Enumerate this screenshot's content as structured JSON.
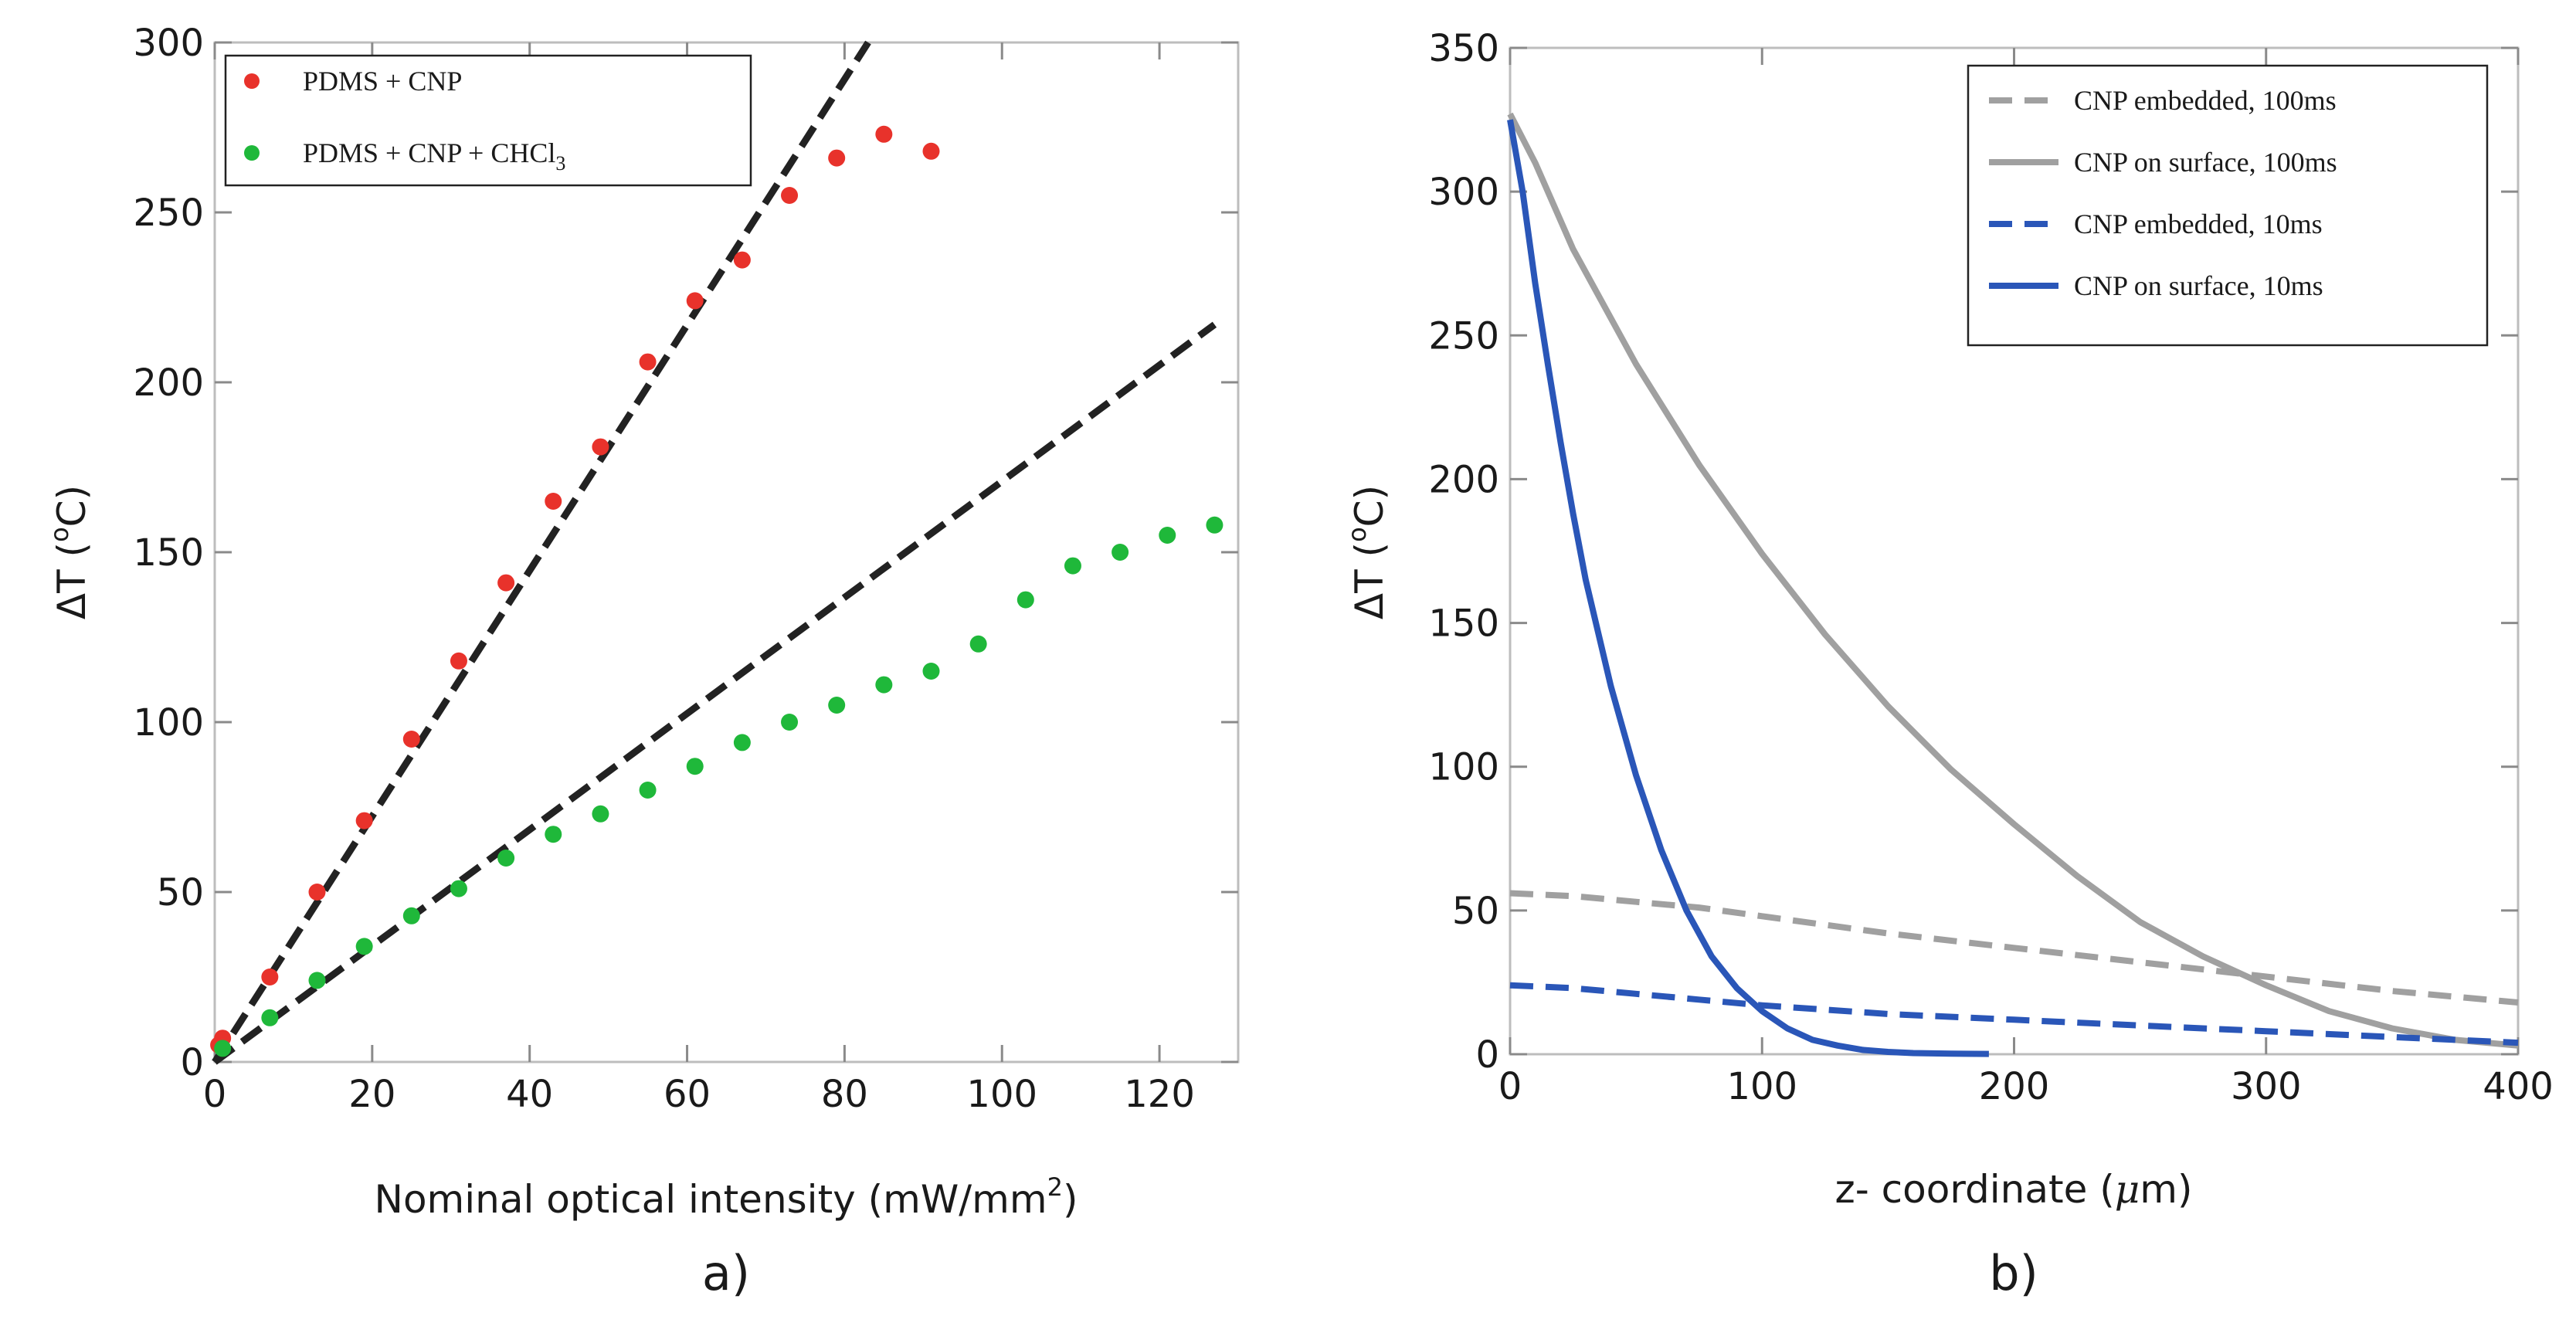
{
  "chart_data": [
    {
      "panel": "a)",
      "type": "scatter",
      "xlabel": "Nominal optical intensity (mW/mm",
      "xlabel_sup": "2",
      "xlabel_end": ")",
      "ylabel": "ΔT (",
      "ylabel_sup": "o",
      "ylabel_end": "C)",
      "xlim": [
        0,
        130
      ],
      "ylim": [
        0,
        300
      ],
      "xticks": [
        0,
        20,
        40,
        60,
        80,
        100,
        120
      ],
      "yticks": [
        0,
        50,
        100,
        150,
        200,
        250,
        300
      ],
      "legend_position": "top-left",
      "series": [
        {
          "name": "PDMS + CNP",
          "color": "#e8322b",
          "marker": "circle",
          "x": [
            0.5,
            1,
            7,
            13,
            19,
            25,
            31,
            37,
            43,
            49,
            55,
            61,
            67,
            73,
            79,
            85,
            91
          ],
          "y": [
            5,
            7,
            25,
            50,
            71,
            95,
            118,
            141,
            165,
            181,
            206,
            224,
            236,
            255,
            266,
            273,
            268
          ]
        },
        {
          "name": "PDMS + CNP + CHCl",
          "name_sub": "3",
          "color": "#1fb83a",
          "marker": "circle",
          "x": [
            1,
            7,
            13,
            19,
            25,
            31,
            37,
            43,
            49,
            55,
            61,
            67,
            73,
            79,
            85,
            91,
            97,
            103,
            109,
            115,
            121,
            127
          ],
          "y": [
            4,
            13,
            24,
            34,
            43,
            51,
            60,
            67,
            73,
            80,
            87,
            94,
            100,
            105,
            111,
            115,
            123,
            136,
            146,
            150,
            155,
            158
          ]
        }
      ],
      "fits": [
        {
          "style": "dashed",
          "color": "#222222",
          "x": [
            0,
            83
          ],
          "y": [
            0,
            300
          ]
        },
        {
          "style": "dashed",
          "color": "#222222",
          "x": [
            0,
            127
          ],
          "y": [
            0,
            217
          ]
        }
      ]
    },
    {
      "panel": "b)",
      "type": "line",
      "xlabel": "z- coordinate (",
      "xlabel_mu": "μ",
      "xlabel_end": "m)",
      "ylabel": "ΔT (",
      "ylabel_sup": "o",
      "ylabel_end": "C)",
      "xlim": [
        0,
        400
      ],
      "ylim": [
        0,
        350
      ],
      "xticks": [
        0,
        100,
        200,
        300,
        400
      ],
      "yticks": [
        0,
        50,
        100,
        150,
        200,
        250,
        300,
        350
      ],
      "legend_position": "top-right",
      "series": [
        {
          "name": "CNP embedded, 100ms",
          "color": "#a0a0a0",
          "style": "dashed",
          "x": [
            0,
            25,
            50,
            75,
            100,
            150,
            200,
            250,
            300,
            350,
            400
          ],
          "y": [
            56,
            55,
            53,
            51,
            48,
            42,
            37,
            32,
            27,
            22,
            18
          ]
        },
        {
          "name": "CNP on surface, 100ms",
          "color": "#a0a0a0",
          "style": "solid",
          "x": [
            0,
            10,
            25,
            50,
            75,
            100,
            125,
            150,
            175,
            200,
            225,
            250,
            275,
            300,
            325,
            350,
            375,
            400
          ],
          "y": [
            327,
            310,
            280,
            240,
            205,
            174,
            146,
            121,
            99,
            80,
            62,
            46,
            34,
            24,
            15,
            9,
            5,
            3
          ]
        },
        {
          "name": "CNP embedded, 10ms",
          "color": "#2a56b8",
          "style": "dashed",
          "x": [
            0,
            25,
            50,
            75,
            100,
            150,
            200,
            250,
            300,
            350,
            400
          ],
          "y": [
            24,
            23,
            21,
            19,
            17,
            14,
            12,
            10,
            8,
            6,
            4
          ]
        },
        {
          "name": "CNP on surface, 10ms",
          "color": "#2a56b8",
          "style": "solid",
          "x": [
            0,
            5,
            10,
            15,
            20,
            25,
            30,
            40,
            50,
            60,
            70,
            80,
            90,
            100,
            110,
            120,
            130,
            140,
            150,
            160,
            175,
            190
          ],
          "y": [
            325,
            300,
            268,
            240,
            213,
            188,
            165,
            128,
            97,
            71,
            50,
            34,
            23,
            15,
            9,
            5,
            3,
            1.5,
            0.8,
            0.4,
            0.2,
            0.1
          ]
        }
      ]
    }
  ]
}
